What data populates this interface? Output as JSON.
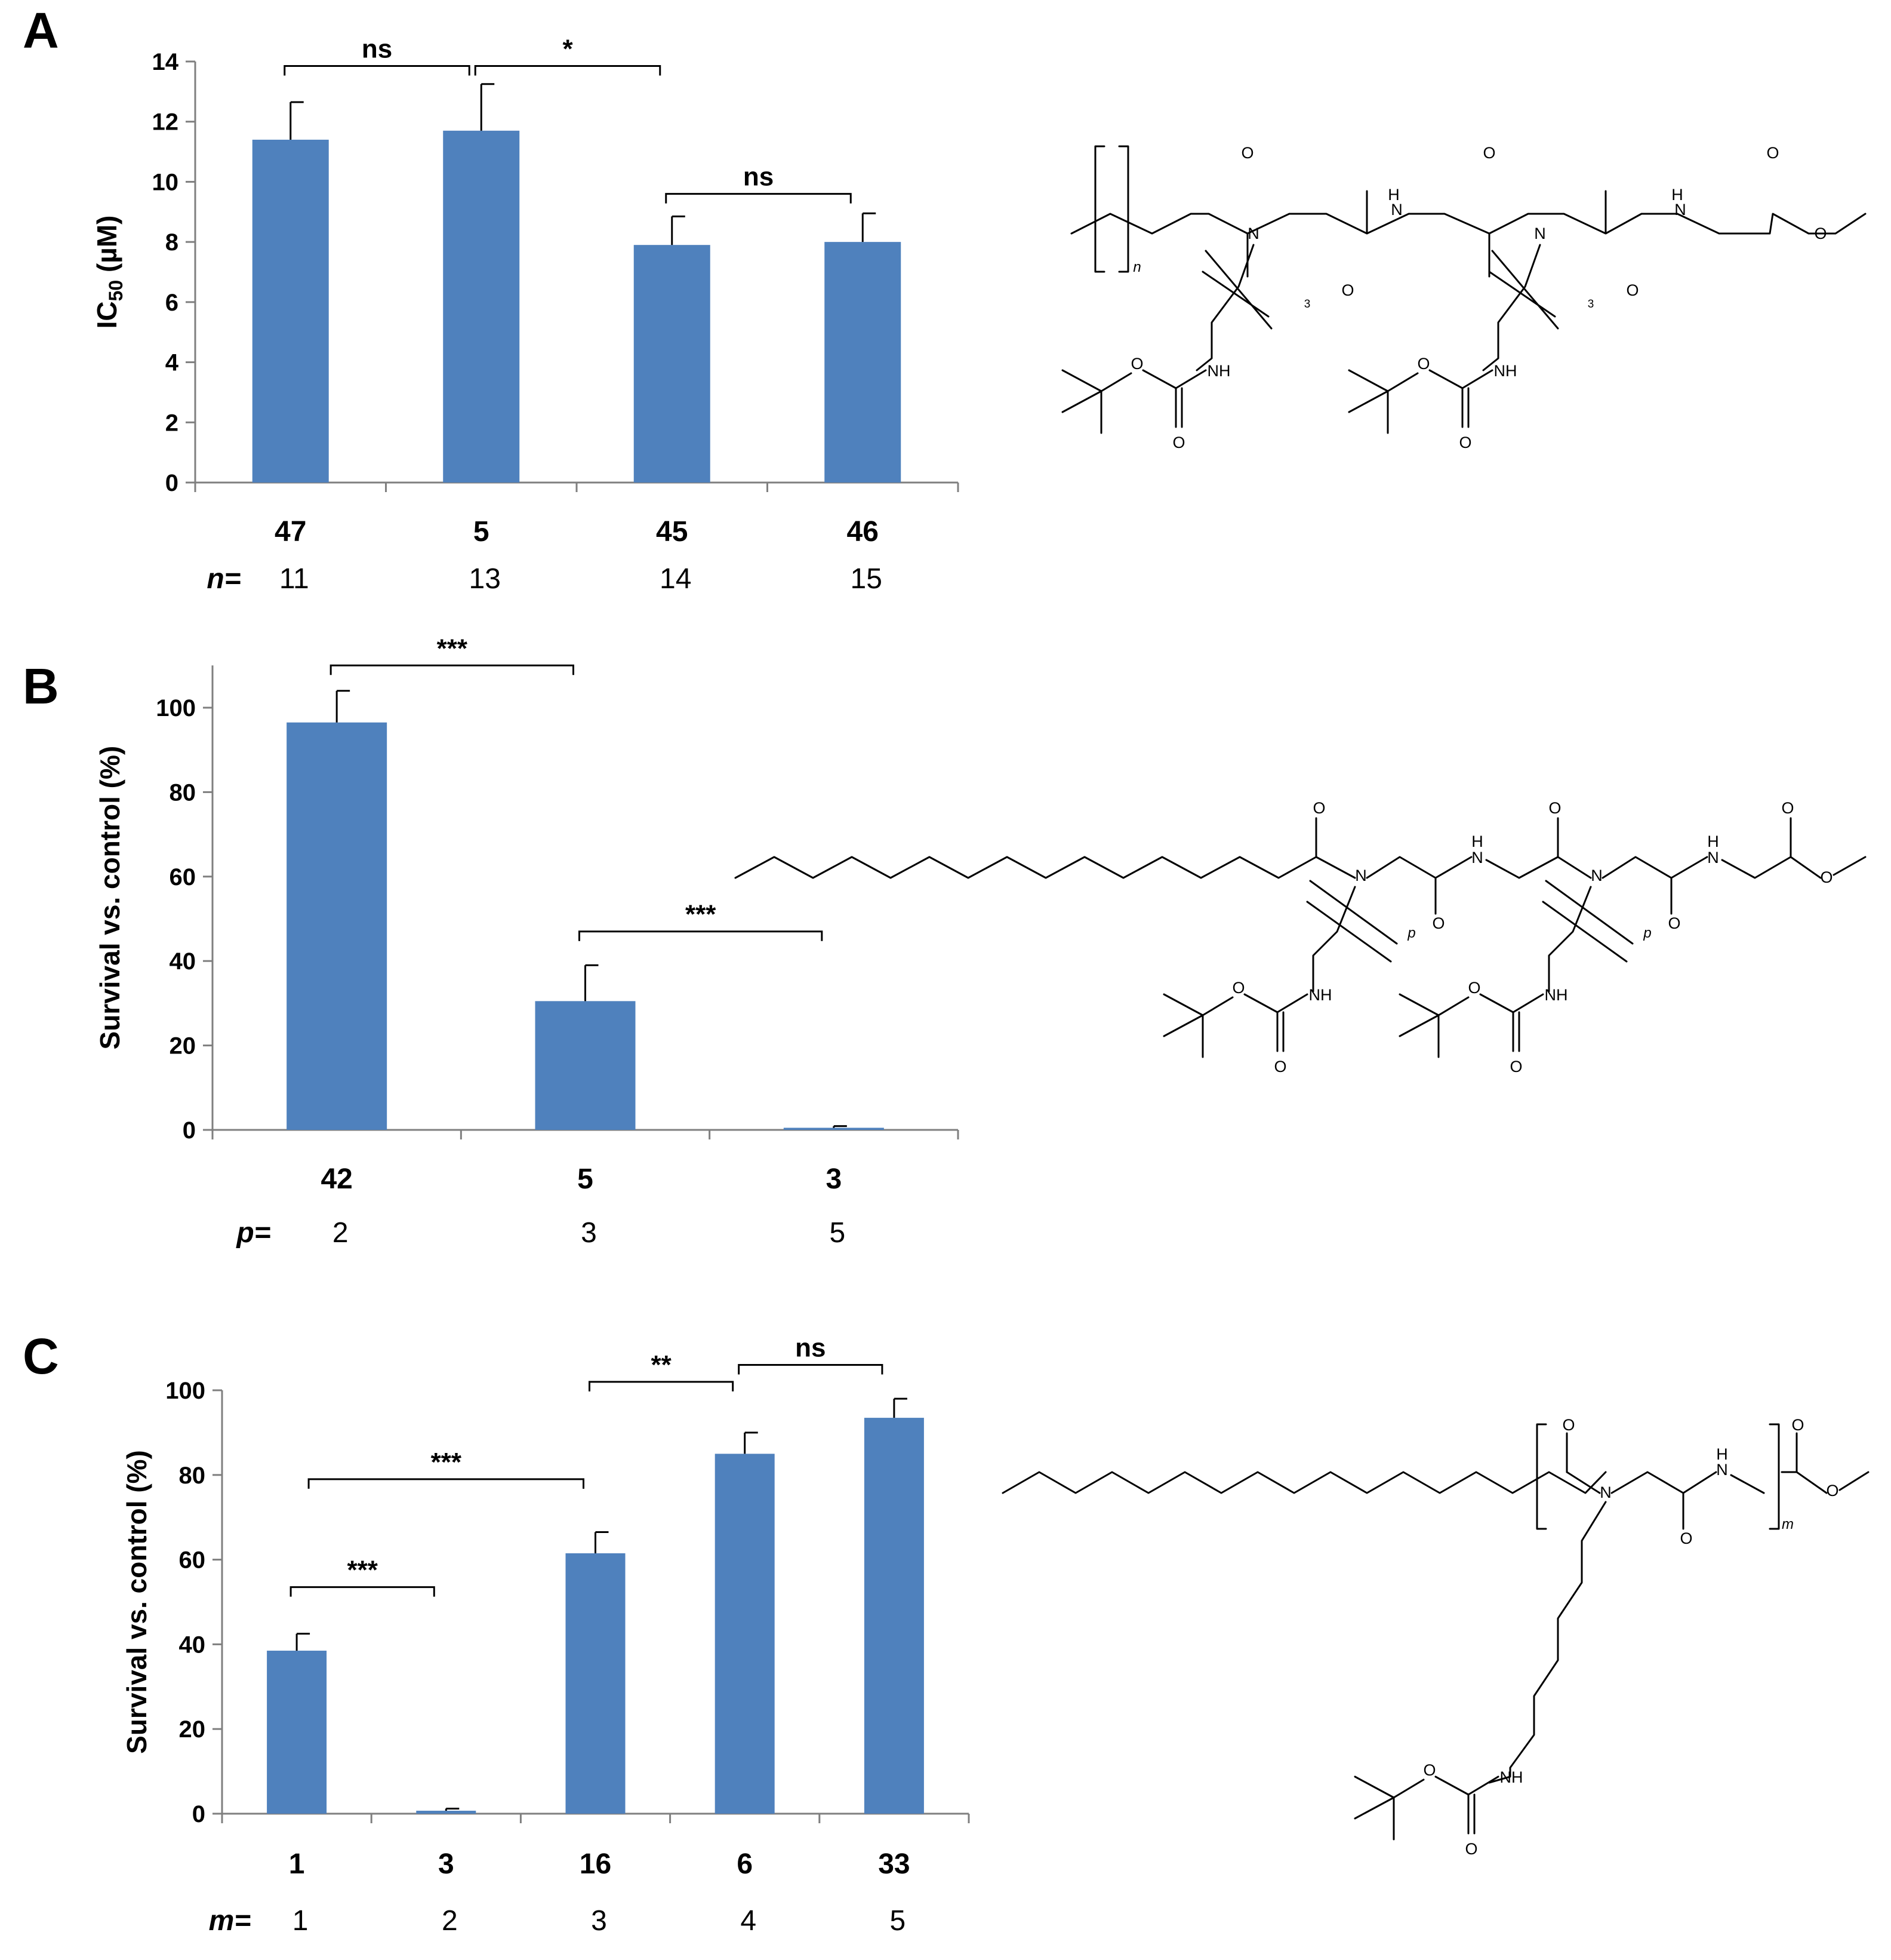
{
  "chart_data": [
    {
      "panel": "A",
      "type": "bar",
      "ylabel": "IC50 (µM)",
      "ylabel_main": "IC",
      "ylabel_sub": "50",
      "ylabel_rest": " (µM)",
      "ylim": [
        0,
        14
      ],
      "yticks": [
        0,
        2,
        4,
        6,
        8,
        10,
        12,
        14
      ],
      "ytick_labels": [
        "0",
        "2",
        "4",
        "6",
        "8",
        "10",
        "12",
        "14"
      ],
      "categories": [
        "47",
        "5",
        "45",
        "46"
      ],
      "values": [
        11.4,
        11.7,
        7.9,
        8.0
      ],
      "errors": [
        1.25,
        1.55,
        0.95,
        0.95
      ],
      "param_label": "n=",
      "param_values": [
        "11",
        "13",
        "14",
        "15"
      ],
      "color": "#4f81bd",
      "significance": [
        {
          "from": 0,
          "to": 1,
          "label": "ns",
          "y": 13.85
        },
        {
          "from": 1,
          "to": 2,
          "label": "*",
          "y": 13.85
        },
        {
          "from": 2,
          "to": 3,
          "label": "ns",
          "y": 9.6
        }
      ]
    },
    {
      "panel": "B",
      "type": "bar",
      "ylabel": "Survival vs. control (%)",
      "ylim": [
        0,
        110
      ],
      "yticks": [
        0,
        20,
        40,
        60,
        80,
        100
      ],
      "ytick_labels": [
        "0",
        "20",
        "40",
        "60",
        "80",
        "100"
      ],
      "categories": [
        "42",
        "5",
        "3"
      ],
      "values": [
        96.5,
        30.5,
        0.5
      ],
      "errors": [
        7.5,
        8.5,
        0.4
      ],
      "param_label": "p=",
      "param_values": [
        "2",
        "3",
        "5"
      ],
      "color": "#4f81bd",
      "significance": [
        {
          "from": 0,
          "to": 1,
          "label": "***",
          "y": 110
        },
        {
          "from": 1,
          "to": 2,
          "label": "***",
          "y": 47
        }
      ]
    },
    {
      "panel": "C",
      "type": "bar",
      "ylabel": "Survival vs. control (%)",
      "ylim": [
        0,
        100
      ],
      "yticks": [
        0,
        20,
        40,
        60,
        80,
        100
      ],
      "ytick_labels": [
        "0",
        "20",
        "40",
        "60",
        "80",
        "100"
      ],
      "categories": [
        "1",
        "3",
        "16",
        "6",
        "33"
      ],
      "values": [
        38.5,
        0.7,
        61.5,
        85,
        93.5
      ],
      "errors": [
        4,
        0.5,
        5,
        5,
        4.5
      ],
      "param_label": "m=",
      "param_values": [
        "1",
        "2",
        "3",
        "4",
        "5"
      ],
      "color": "#4f81bd",
      "significance": [
        {
          "from": 0,
          "to": 2,
          "label": "***",
          "y": 79
        },
        {
          "from": 0,
          "to": 1,
          "label": "***",
          "y": 53.5
        },
        {
          "from": 2,
          "to": 3,
          "label": "**",
          "y": 102
        },
        {
          "from": 3,
          "to": 4,
          "label": "ns",
          "y": 106
        }
      ]
    }
  ],
  "structures": {
    "atom_labels": [
      "N",
      "O",
      "H",
      "NH"
    ],
    "subscripts": [
      "n",
      "p",
      "m",
      "3"
    ]
  }
}
